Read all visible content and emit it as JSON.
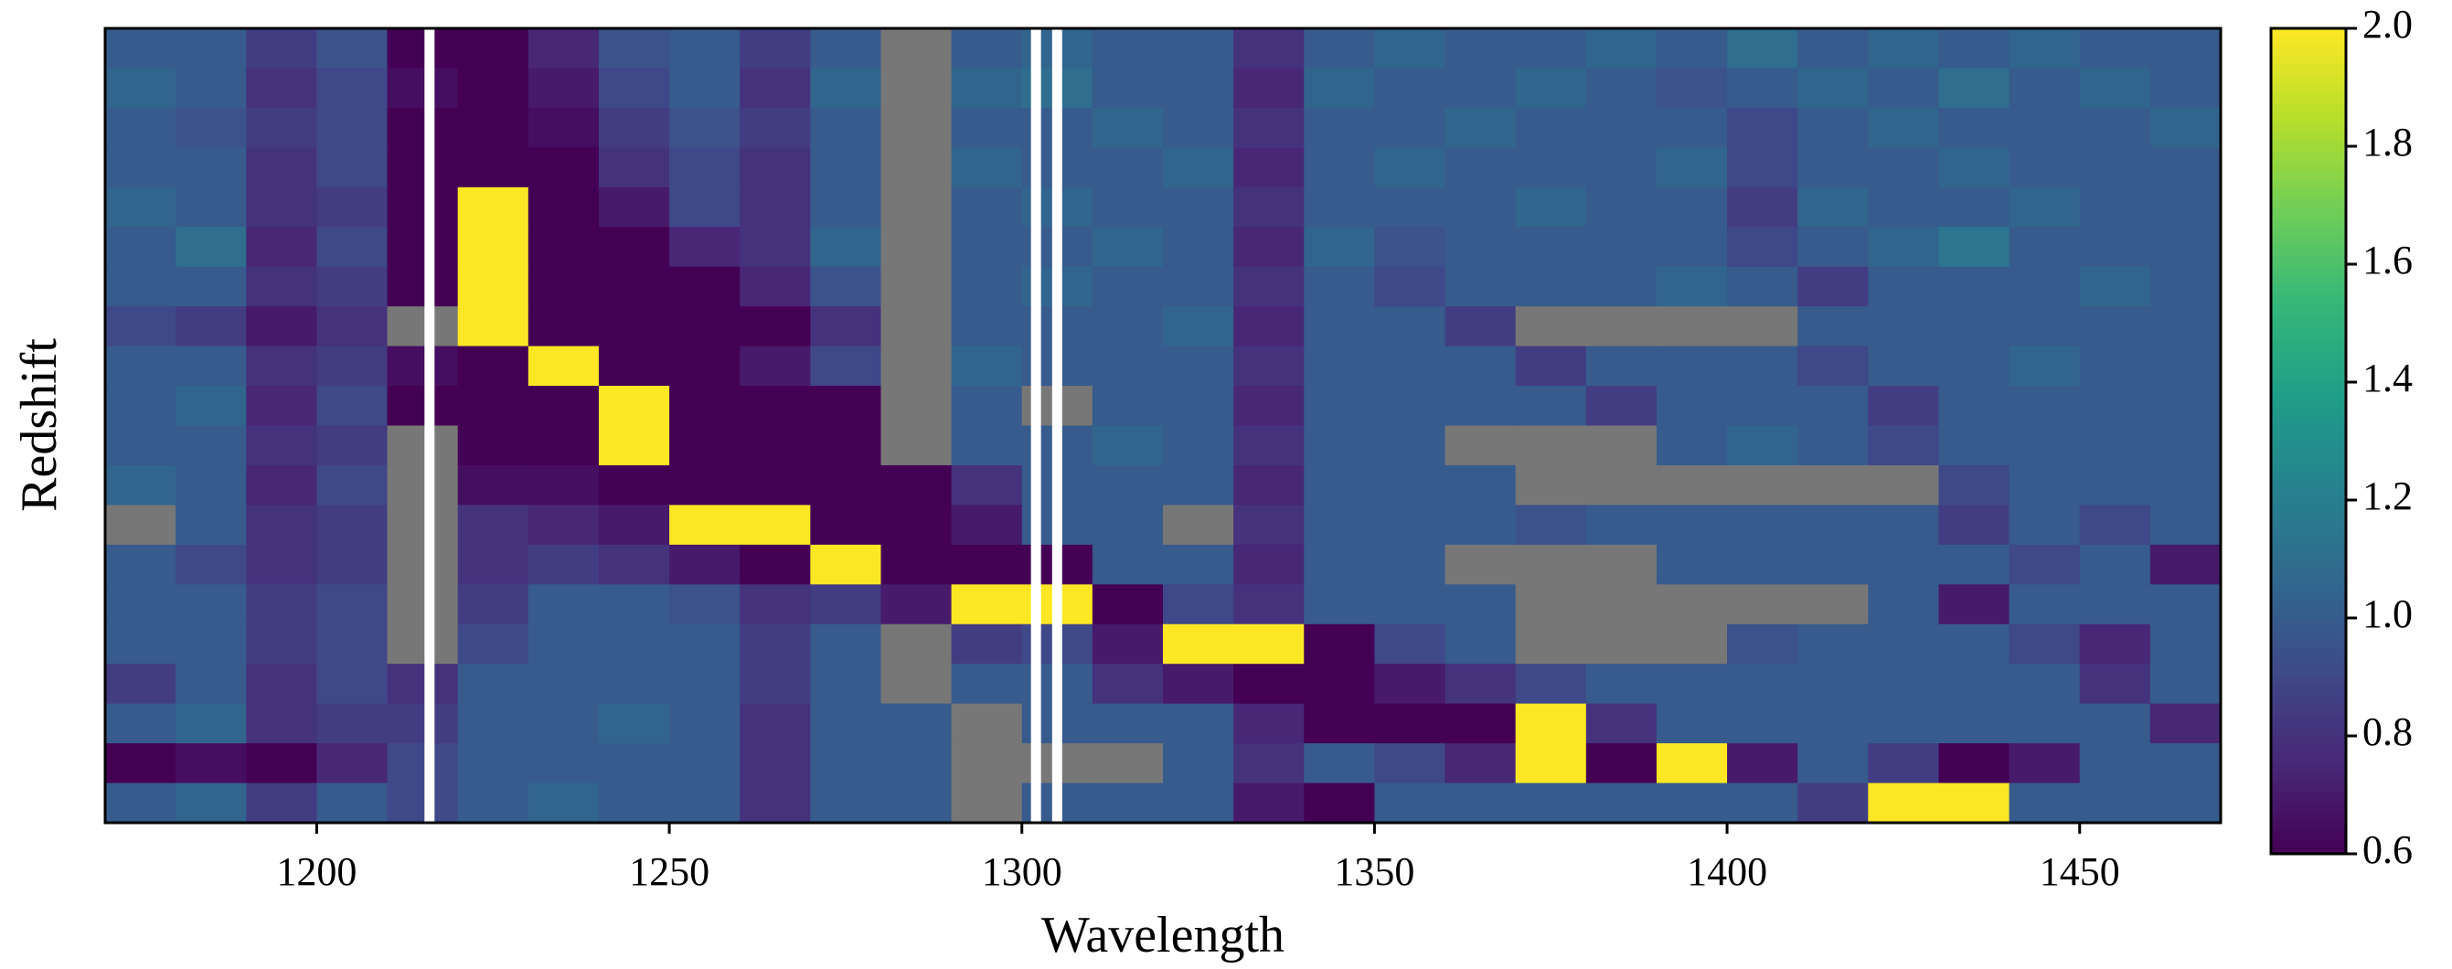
{
  "chart_data": {
    "type": "heatmap",
    "xlabel": "Wavelength",
    "ylabel": "Redshift",
    "xlim": [
      1170,
      1470
    ],
    "xticks": [
      1200,
      1250,
      1300,
      1350,
      1400,
      1450
    ],
    "x": [
      1175,
      1185,
      1195,
      1205,
      1215,
      1225,
      1235,
      1245,
      1255,
      1265,
      1275,
      1285,
      1295,
      1305,
      1315,
      1325,
      1335,
      1345,
      1355,
      1365,
      1375,
      1385,
      1395,
      1405,
      1415,
      1425,
      1435,
      1445,
      1455,
      1465
    ],
    "colormap": "viridis",
    "missing_color": "#777777",
    "clim": [
      0.6,
      2.0
    ],
    "cticks": [
      0.6,
      0.8,
      {
        "value": 1.0,
        "label": "1.0"
      },
      1.2,
      1.4,
      1.6,
      1.8,
      {
        "value": 2.0,
        "label": "2.0"
      }
    ],
    "vlines": [
      1216,
      1302,
      1305
    ],
    "vline_color": "#ffffff",
    "z": [
      [
        1.0,
        1.0,
        0.85,
        0.95,
        0.6,
        0.6,
        0.75,
        0.95,
        1.0,
        0.85,
        1.0,
        null,
        1.0,
        1.05,
        1.0,
        1.0,
        0.8,
        1.0,
        1.05,
        1.0,
        1.0,
        1.05,
        1.0,
        1.1,
        1.0,
        1.05,
        1.0,
        1.05,
        1.0,
        1.0
      ],
      [
        1.05,
        1.0,
        0.8,
        0.9,
        0.65,
        0.6,
        0.7,
        0.9,
        1.0,
        0.8,
        1.05,
        null,
        1.05,
        1.1,
        1.0,
        1.0,
        0.75,
        1.05,
        1.0,
        1.0,
        1.05,
        1.0,
        0.95,
        1.0,
        1.05,
        1.0,
        1.1,
        1.0,
        1.05,
        1.0
      ],
      [
        1.0,
        0.95,
        0.85,
        0.9,
        0.6,
        0.6,
        0.65,
        0.85,
        0.95,
        0.85,
        1.0,
        null,
        1.0,
        1.0,
        1.05,
        1.0,
        0.8,
        1.0,
        1.0,
        1.05,
        1.0,
        1.0,
        1.0,
        0.9,
        1.0,
        1.05,
        1.0,
        1.0,
        1.0,
        1.05
      ],
      [
        1.0,
        1.0,
        0.8,
        0.9,
        0.6,
        0.6,
        0.6,
        0.8,
        0.9,
        0.8,
        1.0,
        null,
        1.05,
        1.0,
        1.0,
        1.05,
        0.75,
        1.0,
        1.05,
        1.0,
        1.0,
        1.0,
        1.05,
        0.9,
        1.0,
        1.0,
        1.05,
        1.0,
        1.0,
        1.0
      ],
      [
        1.05,
        1.0,
        0.8,
        0.85,
        0.6,
        2.0,
        0.6,
        0.7,
        0.9,
        0.8,
        1.0,
        null,
        1.0,
        1.05,
        1.0,
        1.0,
        0.8,
        1.0,
        1.0,
        1.0,
        1.05,
        1.0,
        1.0,
        0.85,
        1.05,
        1.0,
        1.0,
        1.05,
        1.0,
        1.0
      ],
      [
        1.0,
        1.1,
        0.75,
        0.9,
        0.6,
        2.0,
        0.6,
        0.6,
        0.75,
        0.8,
        1.05,
        null,
        1.0,
        1.0,
        1.05,
        1.0,
        0.75,
        1.05,
        0.95,
        1.0,
        1.0,
        1.0,
        1.0,
        0.9,
        1.0,
        1.05,
        1.15,
        1.0,
        1.0,
        1.0
      ],
      [
        1.0,
        1.0,
        0.8,
        0.85,
        0.6,
        2.0,
        0.6,
        0.6,
        0.6,
        0.75,
        0.95,
        null,
        1.0,
        1.05,
        1.0,
        1.0,
        0.8,
        1.0,
        0.9,
        1.0,
        1.0,
        1.0,
        1.05,
        1.0,
        0.85,
        1.0,
        1.0,
        1.0,
        1.05,
        1.0
      ],
      [
        0.9,
        0.85,
        0.7,
        0.8,
        null,
        2.0,
        0.6,
        0.6,
        0.6,
        0.6,
        0.8,
        null,
        1.0,
        1.0,
        1.0,
        1.05,
        0.75,
        1.0,
        1.0,
        0.85,
        null,
        null,
        null,
        null,
        1.0,
        1.0,
        1.0,
        1.0,
        1.0,
        1.0
      ],
      [
        1.0,
        1.0,
        0.8,
        0.85,
        0.65,
        0.6,
        2.0,
        0.6,
        0.6,
        0.7,
        0.9,
        null,
        1.05,
        1.0,
        1.0,
        1.0,
        0.8,
        1.0,
        1.0,
        1.0,
        0.85,
        1.0,
        1.0,
        1.0,
        0.9,
        1.0,
        1.0,
        1.05,
        1.0,
        1.0
      ],
      [
        1.0,
        1.05,
        0.75,
        0.9,
        0.6,
        0.6,
        0.6,
        2.0,
        0.6,
        0.6,
        0.6,
        null,
        1.0,
        null,
        1.0,
        1.0,
        0.75,
        1.0,
        1.0,
        1.0,
        1.0,
        0.85,
        1.0,
        1.0,
        1.0,
        0.85,
        1.0,
        1.0,
        1.0,
        1.0
      ],
      [
        1.0,
        1.0,
        0.8,
        0.85,
        null,
        0.6,
        0.6,
        2.0,
        0.6,
        0.6,
        0.6,
        null,
        1.0,
        1.0,
        1.05,
        1.0,
        0.8,
        1.0,
        1.0,
        null,
        null,
        null,
        1.0,
        1.05,
        1.0,
        0.9,
        1.0,
        1.0,
        1.0,
        1.0
      ],
      [
        1.05,
        1.0,
        0.75,
        0.9,
        null,
        0.65,
        0.65,
        0.6,
        0.6,
        0.6,
        0.6,
        0.6,
        0.8,
        1.0,
        1.0,
        1.0,
        0.75,
        1.0,
        1.0,
        1.0,
        null,
        null,
        null,
        null,
        null,
        null,
        0.9,
        1.0,
        1.0,
        1.0
      ],
      [
        null,
        1.0,
        0.8,
        0.85,
        null,
        0.8,
        0.75,
        0.7,
        2.0,
        2.0,
        0.6,
        0.6,
        0.7,
        1.0,
        1.0,
        null,
        0.8,
        1.0,
        1.0,
        1.0,
        0.95,
        1.0,
        1.0,
        1.0,
        1.0,
        1.0,
        0.85,
        1.0,
        0.9,
        1.0
      ],
      [
        1.0,
        0.9,
        0.8,
        0.85,
        null,
        0.8,
        0.85,
        0.8,
        0.7,
        0.6,
        2.0,
        0.6,
        0.6,
        0.6,
        1.0,
        1.0,
        0.75,
        1.0,
        1.0,
        null,
        null,
        null,
        1.0,
        1.0,
        1.0,
        1.0,
        1.0,
        0.9,
        1.0,
        0.7
      ],
      [
        1.0,
        1.0,
        0.85,
        0.9,
        null,
        0.85,
        1.0,
        1.0,
        0.95,
        0.8,
        0.85,
        0.7,
        2.0,
        2.0,
        0.6,
        0.9,
        0.8,
        1.0,
        1.0,
        1.0,
        null,
        null,
        null,
        null,
        null,
        1.0,
        0.7,
        1.0,
        1.0,
        1.0
      ],
      [
        1.0,
        1.0,
        0.85,
        0.9,
        null,
        0.9,
        1.0,
        1.0,
        1.0,
        0.85,
        1.0,
        null,
        0.85,
        0.9,
        0.7,
        2.0,
        2.0,
        0.6,
        0.9,
        1.0,
        null,
        null,
        null,
        0.95,
        1.0,
        1.0,
        1.0,
        0.9,
        0.75,
        1.0
      ],
      [
        0.85,
        1.0,
        0.8,
        0.9,
        0.8,
        1.0,
        1.0,
        1.0,
        1.0,
        0.85,
        1.0,
        null,
        1.0,
        1.0,
        0.8,
        0.7,
        0.6,
        0.6,
        0.7,
        0.8,
        0.9,
        1.0,
        1.0,
        1.0,
        1.0,
        1.0,
        1.0,
        1.0,
        0.8,
        1.0
      ],
      [
        1.0,
        1.05,
        0.8,
        0.85,
        0.85,
        1.0,
        1.0,
        1.05,
        1.0,
        0.8,
        1.0,
        1.0,
        null,
        1.0,
        1.0,
        1.0,
        0.75,
        0.6,
        0.6,
        0.6,
        2.0,
        0.8,
        1.0,
        1.0,
        1.0,
        1.0,
        1.0,
        1.0,
        1.0,
        0.75
      ],
      [
        0.6,
        0.65,
        0.6,
        0.75,
        0.9,
        1.0,
        1.0,
        1.0,
        1.0,
        0.8,
        1.0,
        1.0,
        null,
        null,
        null,
        1.0,
        0.8,
        1.0,
        0.9,
        0.75,
        2.0,
        0.6,
        2.0,
        0.7,
        1.0,
        0.85,
        0.6,
        0.7,
        1.0,
        1.0
      ],
      [
        1.0,
        1.05,
        0.85,
        1.0,
        0.9,
        1.0,
        1.05,
        1.0,
        1.0,
        0.8,
        1.0,
        1.0,
        null,
        1.0,
        1.0,
        1.0,
        0.7,
        0.6,
        1.0,
        1.0,
        1.0,
        1.0,
        1.0,
        1.0,
        0.85,
        2.0,
        2.0,
        1.0,
        1.0,
        1.0
      ]
    ]
  }
}
